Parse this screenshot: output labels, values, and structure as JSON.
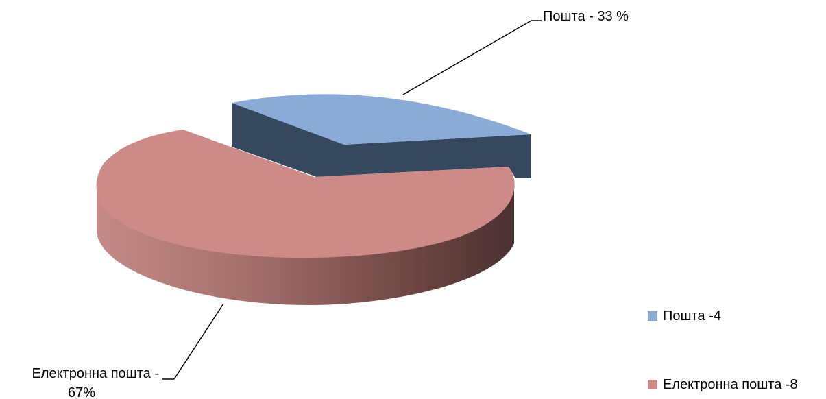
{
  "chart_data": {
    "type": "pie",
    "style": "3d-exploded",
    "slices": [
      {
        "name": "Пошта",
        "value": 4,
        "percent": 33,
        "color": "#8AAAD8",
        "side_color": "#35485E",
        "data_label_lines": [
          "Пошта - 33 %"
        ],
        "legend_label": "Пошта -4"
      },
      {
        "name": "Електронна пошта",
        "value": 8,
        "percent": 67,
        "color": "#CD8B88",
        "side_color_light": "#B27872",
        "side_color_dark": "#553838",
        "data_label_lines": [
          "Електронна пошта -",
          "67%"
        ],
        "legend_label": "Електронна пошта -8"
      }
    ],
    "legend_position": "right"
  }
}
